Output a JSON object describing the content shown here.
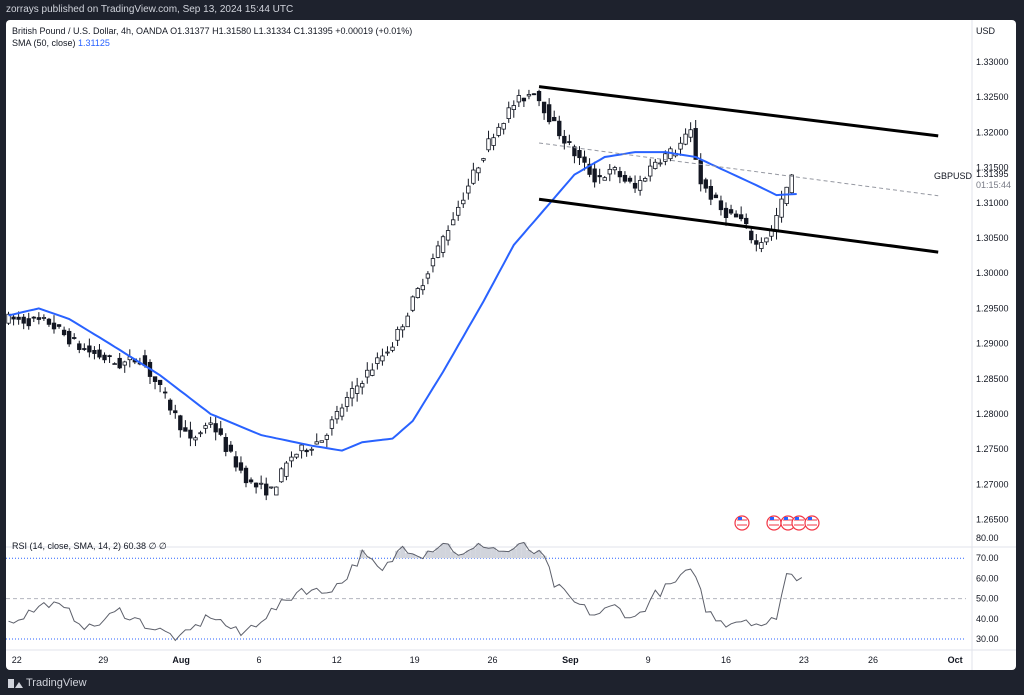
{
  "header": {
    "published": "zorrays published on TradingView.com, Sep 13, 2024 15:44 UTC"
  },
  "legend": {
    "main": "British Pound / U.S. Dollar, 4h, OANDA  O1.31377  H1.31580  L1.31334  C1.31395  +0.00019 (+0.01%)",
    "sma_label": "SMA (50, close)",
    "sma_value": "1.31125",
    "rsi": "RSI (14, close, SMA, 14, 2)  60.38  ∅  ∅"
  },
  "axis": {
    "currency": "USD",
    "symbol": "GBPUSD",
    "last_price": "1.31395",
    "countdown": "01:15:44"
  },
  "footer": {
    "brand": "TradingView"
  },
  "chart_data": [
    {
      "type": "candlestick",
      "price_ticks": [
        "1.33000",
        "1.32500",
        "1.32000",
        "1.31500",
        "1.31000",
        "1.30500",
        "1.30000",
        "1.29500",
        "1.29000",
        "1.28500",
        "1.28000",
        "1.27500",
        "1.27000",
        "1.26500"
      ],
      "ylim": [
        1.262,
        1.336
      ],
      "x_ticks": [
        "22",
        "29",
        "Aug",
        "6",
        "12",
        "19",
        "26",
        "Sep",
        "9",
        "16",
        "23",
        "26",
        "Oct"
      ],
      "last_close": 1.31395,
      "anchors": [
        {
          "i": 0,
          "v": 1.2935
        },
        {
          "i": 8,
          "v": 1.293
        },
        {
          "i": 14,
          "v": 1.2895
        },
        {
          "i": 22,
          "v": 1.287
        },
        {
          "i": 26,
          "v": 1.288
        },
        {
          "i": 30,
          "v": 1.2835
        },
        {
          "i": 36,
          "v": 1.276
        },
        {
          "i": 40,
          "v": 1.279
        },
        {
          "i": 44,
          "v": 1.274
        },
        {
          "i": 48,
          "v": 1.27
        },
        {
          "i": 52,
          "v": 1.269
        },
        {
          "i": 56,
          "v": 1.274
        },
        {
          "i": 62,
          "v": 1.2765
        },
        {
          "i": 66,
          "v": 1.281
        },
        {
          "i": 70,
          "v": 1.285
        },
        {
          "i": 76,
          "v": 1.29
        },
        {
          "i": 82,
          "v": 1.299
        },
        {
          "i": 88,
          "v": 1.308
        },
        {
          "i": 92,
          "v": 1.314
        },
        {
          "i": 96,
          "v": 1.32
        },
        {
          "i": 100,
          "v": 1.324
        },
        {
          "i": 104,
          "v": 1.326
        },
        {
          "i": 108,
          "v": 1.321
        },
        {
          "i": 112,
          "v": 1.317
        },
        {
          "i": 116,
          "v": 1.3135
        },
        {
          "i": 120,
          "v": 1.3145
        },
        {
          "i": 124,
          "v": 1.312
        },
        {
          "i": 128,
          "v": 1.316
        },
        {
          "i": 132,
          "v": 1.3175
        },
        {
          "i": 135,
          "v": 1.32
        },
        {
          "i": 137,
          "v": 1.313
        },
        {
          "i": 141,
          "v": 1.309
        },
        {
          "i": 145,
          "v": 1.3075
        },
        {
          "i": 148,
          "v": 1.304
        },
        {
          "i": 151,
          "v": 1.306
        },
        {
          "i": 155,
          "v": 1.314
        }
      ],
      "sma": [
        {
          "i": 0,
          "v": 1.294
        },
        {
          "i": 6,
          "v": 1.295
        },
        {
          "i": 12,
          "v": 1.2935
        },
        {
          "i": 20,
          "v": 1.29
        },
        {
          "i": 30,
          "v": 1.2855
        },
        {
          "i": 40,
          "v": 1.28
        },
        {
          "i": 50,
          "v": 1.277
        },
        {
          "i": 60,
          "v": 1.2755
        },
        {
          "i": 66,
          "v": 1.2748
        },
        {
          "i": 70,
          "v": 1.276
        },
        {
          "i": 76,
          "v": 1.2765
        },
        {
          "i": 80,
          "v": 1.279
        },
        {
          "i": 86,
          "v": 1.286
        },
        {
          "i": 94,
          "v": 1.296
        },
        {
          "i": 100,
          "v": 1.304
        },
        {
          "i": 106,
          "v": 1.309
        },
        {
          "i": 112,
          "v": 1.314
        },
        {
          "i": 118,
          "v": 1.3165
        },
        {
          "i": 124,
          "v": 1.3172
        },
        {
          "i": 130,
          "v": 1.3172
        },
        {
          "i": 136,
          "v": 1.3165
        },
        {
          "i": 142,
          "v": 1.3145
        },
        {
          "i": 148,
          "v": 1.3125
        },
        {
          "i": 152,
          "v": 1.3111
        },
        {
          "i": 156,
          "v": 1.31125
        }
      ],
      "channel_upper": [
        {
          "i": 105,
          "v": 1.3265
        },
        {
          "i": 184,
          "v": 1.3195
        }
      ],
      "channel_lower": [
        {
          "i": 105,
          "v": 1.3105
        },
        {
          "i": 184,
          "v": 1.303
        }
      ],
      "dashed_line": [
        {
          "i": 105,
          "v": 1.3185
        },
        {
          "i": 184,
          "v": 1.311
        }
      ],
      "event_markers": 4
    },
    {
      "type": "line",
      "title": "RSI (14, close, SMA, 14, 2)",
      "yticks": [
        "80.00",
        "70.00",
        "60.00",
        "50.00",
        "40.00",
        "30.00"
      ],
      "ylim": [
        26,
        83
      ],
      "bands": [
        30,
        50,
        70
      ],
      "last_value": 60.38,
      "anchors": [
        {
          "i": 0,
          "v": 38
        },
        {
          "i": 8,
          "v": 48
        },
        {
          "i": 12,
          "v": 43
        },
        {
          "i": 16,
          "v": 35
        },
        {
          "i": 22,
          "v": 44
        },
        {
          "i": 28,
          "v": 36
        },
        {
          "i": 34,
          "v": 30
        },
        {
          "i": 40,
          "v": 42
        },
        {
          "i": 46,
          "v": 32
        },
        {
          "i": 50,
          "v": 40
        },
        {
          "i": 54,
          "v": 47
        },
        {
          "i": 58,
          "v": 55
        },
        {
          "i": 62,
          "v": 53
        },
        {
          "i": 66,
          "v": 58
        },
        {
          "i": 70,
          "v": 72
        },
        {
          "i": 74,
          "v": 63
        },
        {
          "i": 78,
          "v": 76
        },
        {
          "i": 82,
          "v": 72
        },
        {
          "i": 86,
          "v": 78
        },
        {
          "i": 90,
          "v": 71
        },
        {
          "i": 94,
          "v": 77
        },
        {
          "i": 98,
          "v": 73
        },
        {
          "i": 102,
          "v": 76
        },
        {
          "i": 106,
          "v": 70
        },
        {
          "i": 108,
          "v": 57
        },
        {
          "i": 112,
          "v": 48
        },
        {
          "i": 116,
          "v": 42
        },
        {
          "i": 120,
          "v": 46
        },
        {
          "i": 124,
          "v": 40
        },
        {
          "i": 128,
          "v": 52
        },
        {
          "i": 132,
          "v": 58
        },
        {
          "i": 134,
          "v": 62
        },
        {
          "i": 136,
          "v": 63
        },
        {
          "i": 138,
          "v": 44
        },
        {
          "i": 142,
          "v": 38
        },
        {
          "i": 146,
          "v": 40
        },
        {
          "i": 150,
          "v": 36
        },
        {
          "i": 152,
          "v": 42
        },
        {
          "i": 154,
          "v": 62
        },
        {
          "i": 157,
          "v": 60
        }
      ]
    }
  ]
}
